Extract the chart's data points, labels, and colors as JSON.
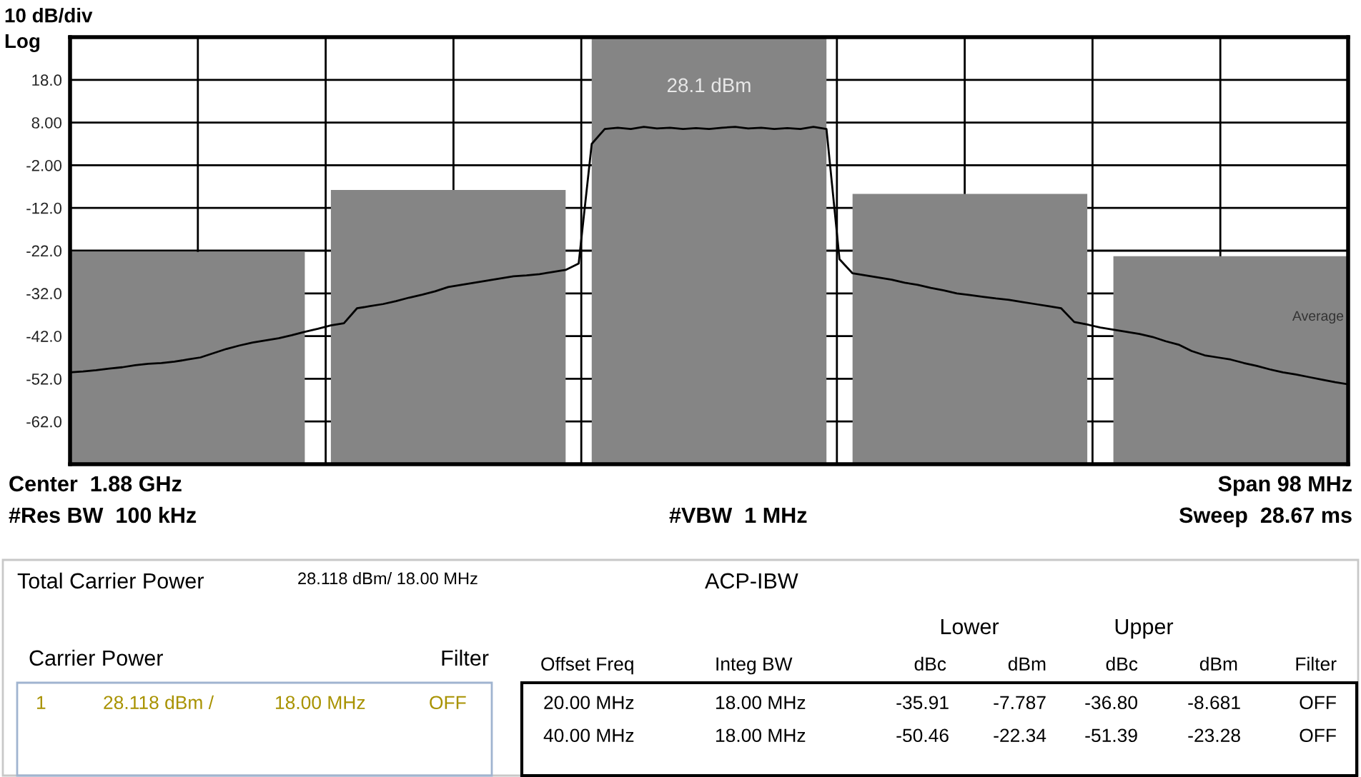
{
  "chart_data": [
    {
      "type": "bar",
      "categories": [
        null,
        null,
        null,
        null,
        null
      ],
      "base": [
        -72,
        -72,
        -72,
        -72,
        -72
      ],
      "values": [
        49.7,
        64.2,
        100.1,
        63.3,
        48.7
      ],
      "color": "#858585",
      "value_labels": [
        null,
        null,
        "28.1 dBm",
        null,
        null
      ],
      "ylim": [
        -72,
        28
      ],
      "yticks": [
        {
          "value": 28,
          "label": null
        },
        {
          "value": 18,
          "label": "18.0"
        },
        {
          "value": 8,
          "label": "8.00"
        },
        {
          "value": -2,
          "label": "-2.00"
        },
        {
          "value": -12,
          "label": "-12.0"
        },
        {
          "value": -22,
          "label": "-22.0"
        },
        {
          "value": -32,
          "label": "-32.0"
        },
        {
          "value": -42,
          "label": "-42.0"
        },
        {
          "value": -52,
          "label": "-52.0"
        },
        {
          "value": -62,
          "label": "-62.0"
        }
      ],
      "grid": true,
      "annotations": [
        "10 dB/div",
        "Log",
        "Center  1.88 GHz",
        "#Res BW  100 kHz",
        "#VBW  1 MHz",
        "Span 98 MHz",
        "Sweep  28.67 ms",
        "Total Carrier Power",
        "28.118 dBm/ 18.00 MHz",
        "ACP-IBW",
        "Lower",
        "Upper",
        "Carrier Power",
        "Filter",
        "Offset Freq",
        "Integ BW",
        "dBc",
        "dBm",
        "dBc",
        "dBm",
        "Filter",
        "1",
        "28.118 dBm /",
        "18.00 MHz",
        "OFF",
        "20.00 MHz",
        "18.00 MHz",
        "-35.91",
        "-7.787",
        "-36.80",
        "-8.681",
        "OFF",
        "40.00 MHz",
        "18.00 MHz",
        "-50.46",
        "-22.34",
        "-51.39",
        "-23.28",
        "OFF"
      ]
    },
    {
      "type": "line",
      "categories": [
        null,
        null,
        null,
        null,
        null,
        null,
        null,
        null,
        null,
        null,
        null,
        null,
        null,
        null,
        null,
        null,
        null,
        null,
        null,
        null,
        null,
        null,
        null,
        null,
        null,
        null,
        null,
        null,
        null,
        null,
        null,
        null,
        null,
        null,
        null,
        null,
        null,
        null,
        null,
        null,
        null,
        null,
        null,
        null,
        null,
        null,
        null,
        null,
        null,
        null,
        null,
        null,
        null,
        null,
        null,
        null,
        null,
        null,
        null,
        null,
        null,
        null,
        null,
        null,
        null,
        null,
        null,
        null,
        null,
        null,
        null,
        null,
        null,
        null,
        null,
        null,
        null,
        null,
        null,
        null,
        null,
        null,
        null,
        null,
        null,
        null,
        null,
        null,
        null,
        null,
        null,
        null,
        null,
        null,
        null,
        null,
        null,
        null,
        null
      ],
      "values": [
        -50.5,
        -50.3,
        -50,
        -49.6,
        -49.3,
        -48.8,
        -48.5,
        -48.3,
        -48,
        -47.5,
        -47,
        -46,
        -45,
        -44.2,
        -43.5,
        -43,
        -42.5,
        -41.8,
        -41,
        -40.3,
        -39.5,
        -39,
        -35.5,
        -35,
        -34.5,
        -33.8,
        -33,
        -32.3,
        -31.5,
        -30.5,
        -30,
        -29.5,
        -29,
        -28.5,
        -28,
        -27.8,
        -27.5,
        -27,
        -26.5,
        -25,
        3,
        6.5,
        6.8,
        6.5,
        7,
        6.6,
        6.8,
        6.5,
        6.7,
        6.5,
        6.8,
        7,
        6.6,
        6.8,
        6.5,
        6.7,
        6.5,
        7,
        6.5,
        -24,
        -27.3,
        -27.8,
        -28.3,
        -28.8,
        -29.5,
        -30,
        -30.7,
        -31.3,
        -32,
        -32.4,
        -32.8,
        -33.2,
        -33.5,
        -34,
        -34.5,
        -35,
        -35.5,
        -38.7,
        -39.3,
        -40,
        -40.5,
        -41,
        -41.5,
        -42.2,
        -43.2,
        -44,
        -45.5,
        -46.5,
        -47,
        -47.5,
        -48.3,
        -49,
        -49.8,
        -50.5,
        -51,
        -51.6,
        -52.2,
        -52.8,
        -53.3
      ],
      "color": "#000000",
      "ylim": [
        -72,
        28
      ],
      "tick_labels": false,
      "annotations": [
        "Average"
      ]
    }
  ]
}
